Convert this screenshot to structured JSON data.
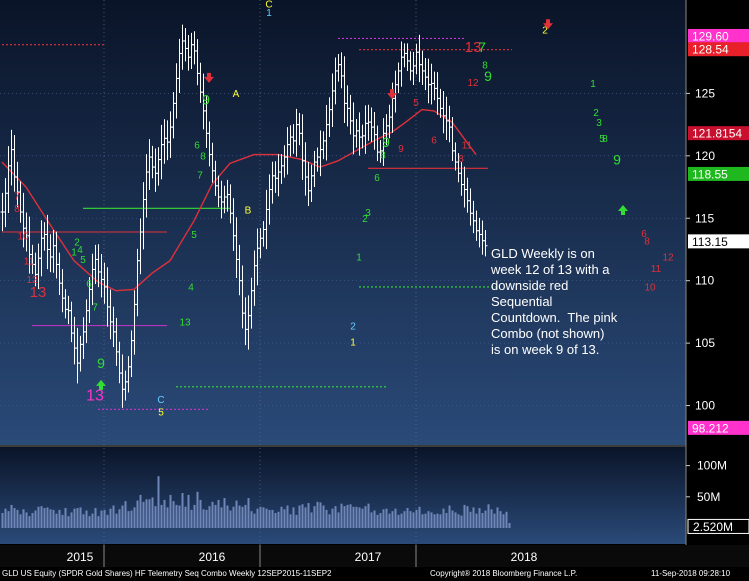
{
  "chart_data": {
    "type": "candlestick-bar",
    "security": "GLD US Equity (SPDR Gold Shares) HF Telemetry Seq Combo  Weekly 12SEP2015-11SEP2",
    "copyright": "Copyright® 2018 Bloomberg Finance L.P.",
    "timestamp": "11-Sep-2018 09:28:10",
    "annotation": "GLD Weekly is on\nweek 12 of 13 with a\ndownside red\nSequential\nCountdown.  The pink\nCombo (not shown)\nis on week 9 of 13.",
    "price_axis": {
      "min": 97,
      "max": 132,
      "ticks": [
        100,
        105,
        110,
        115,
        120,
        125
      ]
    },
    "volume_axis": {
      "min": 0,
      "max": 125,
      "ticks_label": [
        "100M",
        "50M"
      ],
      "ticks": [
        100,
        50
      ]
    },
    "x_labels": [
      {
        "label": "2015",
        "week": 6
      },
      {
        "label": "2016",
        "week": 50
      },
      {
        "label": "2017",
        "week": 102
      },
      {
        "label": "2018",
        "week": 154
      }
    ],
    "year_boundaries": [
      34,
      86,
      138
    ],
    "price_tags": [
      {
        "text": "129.60",
        "value": 129.6,
        "bg": "#ff33cc",
        "fg": "#ffffff"
      },
      {
        "text": "128.54",
        "value": 128.54,
        "bg": "#e8202a",
        "fg": "#ffffff"
      },
      {
        "text": "121.8154",
        "value": 121.8154,
        "bg": "#c8102e",
        "fg": "#ffffff"
      },
      {
        "text": "118.55",
        "value": 118.55,
        "bg": "#1fb81f",
        "fg": "#ffffff"
      },
      {
        "text": "113.15",
        "value": 113.15,
        "bg": "#ffffff",
        "fg": "#000000"
      },
      {
        "text": "98.212",
        "value": 98.212,
        "bg": "#ff33cc",
        "fg": "#ffffff"
      }
    ],
    "volume_tag": {
      "text": "2.520M",
      "value": 2.52
    },
    "colors": {
      "bars": "#ffffff",
      "ma": "#e0303a",
      "volume": "#6f86b8",
      "bg_top": "#0a1428",
      "bg_bottom": "#2a4a78"
    },
    "closes": [
      115.5,
      117,
      119.2,
      120.5,
      118.3,
      117.1,
      115.5,
      114.2,
      113.6,
      112.1,
      111.3,
      110.5,
      111.8,
      113.4,
      113.7,
      112.5,
      111.9,
      112.8,
      111.3,
      109.8,
      108.6,
      107.7,
      107.6,
      105.8,
      104.6,
      103.4,
      104.9,
      105.9,
      107.6,
      109.3,
      110.9,
      111.7,
      110.7,
      110.1,
      109.5,
      107.9,
      106.7,
      105.9,
      104.3,
      102.6,
      101.3,
      101.9,
      103.1,
      105.2,
      108.1,
      111.6,
      113.9,
      116.5,
      118.7,
      119.9,
      119.1,
      118.6,
      119.7,
      120.9,
      121.4,
      121.1,
      122.3,
      124.2,
      126.2,
      128.2,
      129.2,
      128.6,
      127.9,
      128.9,
      128.4,
      126.6,
      125.1,
      123.6,
      121.8,
      120.1,
      118.8,
      117.6,
      116.7,
      116.3,
      116.7,
      116.9,
      115.4,
      113.6,
      111.7,
      110,
      107.4,
      106.1,
      107.2,
      109.2,
      111.2,
      112.6,
      113.4,
      114.1,
      115.7,
      117.3,
      118.4,
      118.2,
      118.7,
      119.2,
      119.9,
      120.9,
      121.5,
      121.2,
      122.5,
      121.8,
      119.6,
      118.3,
      117.2,
      118.4,
      119.5,
      119.9,
      120.5,
      121.2,
      122.5,
      123.7,
      125.2,
      126.8,
      127.3,
      126.4,
      124.2,
      123.8,
      122.8,
      121.6,
      122,
      121.5,
      121.6,
      122.6,
      122.7,
      122.3,
      121.7,
      120.3,
      120.4,
      121.8,
      122.4,
      123.1,
      124.6,
      125.7,
      126.8,
      127.9,
      128.2,
      127.6,
      126.8,
      127.2,
      128.3,
      127.3,
      126.8,
      126.3,
      125.7,
      125.8,
      125.4,
      124.6,
      123.8,
      123.2,
      122.8,
      122.3,
      120.4,
      119.5,
      118.6,
      117.7,
      117.3,
      116.4,
      115.4,
      114.8,
      114,
      113.7,
      113.2,
      112.8
    ],
    "ranges": [
      3.4,
      2.7,
      3.5,
      3.5,
      2.6,
      2.7,
      1.9,
      3.4,
      2.8,
      3.4,
      1.7,
      2.1,
      2.6,
      3.2,
      2.2,
      3.5,
      2.7,
      2.8,
      2.5,
      2.1,
      2.5,
      1.6,
      2.4,
      1.6,
      2.9,
      3.6,
      1.5,
      2.6,
      2,
      2.2,
      2.8,
      2.6,
      2.7,
      3.2,
      3,
      3.5,
      3.1,
      2.7,
      2.5,
      1.8,
      3.3,
      2,
      1.9,
      1.8,
      2.5,
      2.1,
      2.4,
      3.1,
      3.2,
      3.2,
      2,
      3.3,
      2.2,
      3.5,
      3.4,
      3.2,
      2.8,
      2,
      2.7,
      2.6,
      2.9,
      2.3,
      2.4,
      2.1,
      2.4,
      2.1,
      1.9,
      3.3,
      2.6,
      2.1,
      2.1,
      1.8,
      1.8,
      2.9,
      2,
      2.6,
      1.8,
      2.7,
      3.3,
      2.6,
      2.7,
      2.8,
      3.6,
      2.3,
      2.7,
      3.5,
      1.8,
      1.5,
      3.5,
      2.7,
      2.5,
      2.6,
      3.2,
      2.1,
      2.1,
      3.1,
      2.1,
      2.3,
      2.8,
      2.1,
      3.4,
      3.3,
      2.7,
      2,
      2,
      1.7,
      3.4,
      1.7,
      3.5,
      2.2,
      3.1,
      2.4,
      1.9,
      2.2,
      3.5,
      3.2,
      2.4,
      3.3,
      2.1,
      3.3,
      2,
      3.2,
      3.1,
      2.6,
      2.7,
      1.6,
      1.9,
      2.7,
      2.1,
      2.2,
      2.8,
      2.5,
      1.5,
      2.8,
      1.8,
      1.8,
      1.7,
      2.5,
      1.5,
      3.1,
      2.5,
      2.3,
      3.3,
      3.5,
      2.1,
      2.9,
      1.7,
      3.1,
      3.4,
      2.7,
      1.8,
      1.5,
      1.6,
      2,
      3.2,
      2.1,
      2.2,
      2.2,
      1.8,
      2.3,
      2.5,
      1.9,
      2.6,
      2
    ],
    "volumes": [
      24,
      31,
      27,
      37,
      32,
      29,
      22,
      30,
      25,
      19,
      24,
      28,
      34,
      35,
      32,
      33,
      30,
      29,
      23,
      29,
      21,
      32,
      19,
      25,
      31,
      32,
      33,
      22,
      28,
      19,
      23,
      32,
      19,
      28,
      29,
      21,
      31,
      36,
      23,
      30,
      36,
      43,
      27,
      28,
      33,
      44,
      53,
      42,
      46,
      46,
      49,
      35,
      83,
      37,
      45,
      33,
      53,
      43,
      37,
      36,
      56,
      34,
      53,
      29,
      37,
      58,
      45,
      30,
      29,
      35,
      42,
      37,
      45,
      33,
      48,
      36,
      28,
      34,
      44,
      36,
      34,
      37,
      48,
      27,
      23,
      31,
      34,
      33,
      31,
      29,
      29,
      24,
      26,
      34,
      30,
      36,
      22,
      33,
      21,
      36,
      38,
      33,
      40,
      25,
      35,
      42,
      41,
      36,
      29,
      22,
      31,
      35,
      25,
      39,
      35,
      37,
      38,
      34,
      34,
      33,
      31,
      35,
      39,
      25,
      28,
      21,
      24,
      30,
      31,
      23,
      27,
      31,
      21,
      23,
      27,
      32,
      27,
      25,
      29,
      34,
      22,
      23,
      27,
      25,
      22,
      23,
      22,
      31,
      24,
      36,
      28,
      25,
      22,
      20,
      37,
      35,
      26,
      33,
      23,
      32,
      24,
      28,
      38,
      30,
      23,
      33,
      27,
      22,
      26,
      8
    ],
    "ma_line": [
      {
        "w": 0,
        "v": 119.5
      },
      {
        "w": 8,
        "v": 117.5
      },
      {
        "w": 16,
        "v": 114.5
      },
      {
        "w": 24,
        "v": 111.6
      },
      {
        "w": 32,
        "v": 109.9
      },
      {
        "w": 38,
        "v": 109.2
      },
      {
        "w": 44,
        "v": 109.3
      },
      {
        "w": 50,
        "v": 110.6
      },
      {
        "w": 56,
        "v": 111.6
      },
      {
        "w": 64,
        "v": 114.8
      },
      {
        "w": 70,
        "v": 117.7
      },
      {
        "w": 76,
        "v": 119.4
      },
      {
        "w": 84,
        "v": 120.1
      },
      {
        "w": 92,
        "v": 120.1
      },
      {
        "w": 100,
        "v": 119.7
      },
      {
        "w": 106,
        "v": 119.1
      },
      {
        "w": 112,
        "v": 119.6
      },
      {
        "w": 118,
        "v": 120.4
      },
      {
        "w": 124,
        "v": 121.2
      },
      {
        "w": 130,
        "v": 121.9
      },
      {
        "w": 134,
        "v": 122.6
      },
      {
        "w": 140,
        "v": 123.7
      },
      {
        "w": 144,
        "v": 123.6
      },
      {
        "w": 150,
        "v": 122.7
      },
      {
        "w": 158,
        "v": 120.1
      }
    ],
    "h_levels": [
      {
        "w0": 0,
        "w1": 34,
        "v": 128.9,
        "color": "#e0303a",
        "dash": "2,2"
      },
      {
        "w0": 0,
        "w1": 55,
        "v": 113.9,
        "color": "#e0303a",
        "dash": ""
      },
      {
        "w0": 27,
        "w1": 76,
        "v": 115.8,
        "color": "#33dd33",
        "dash": ""
      },
      {
        "w0": 10,
        "w1": 55,
        "v": 106.4,
        "color": "#cc33cc",
        "dash": ""
      },
      {
        "w0": 112,
        "w1": 154,
        "v": 129.4,
        "color": "#cc33cc",
        "dash": "2,2"
      },
      {
        "w0": 119,
        "w1": 170,
        "v": 128.5,
        "color": "#e0303a",
        "dash": "2,2"
      },
      {
        "w0": 122,
        "w1": 162,
        "v": 119.0,
        "color": "#e0303a",
        "dash": ""
      },
      {
        "w0": 119,
        "w1": 165,
        "v": 109.5,
        "color": "#33dd33",
        "dash": "2,2"
      },
      {
        "w0": 58,
        "w1": 128,
        "v": 101.5,
        "color": "#33dd33",
        "dash": "2,2"
      },
      {
        "w0": 32,
        "w1": 69,
        "v": 99.7,
        "color": "#cc33cc",
        "dash": "2,2"
      }
    ],
    "counts": [
      {
        "t": "7",
        "w": 5,
        "v": 116.5,
        "c": "#e0303a",
        "s": 10
      },
      {
        "t": "8",
        "w": 5,
        "v": 115.5,
        "c": "#e0303a",
        "s": 10
      },
      {
        "t": "10",
        "w": 7,
        "v": 113.3,
        "c": "#e0303a",
        "s": 10
      },
      {
        "t": "11",
        "w": 9,
        "v": 111.3,
        "c": "#e0303a",
        "s": 10
      },
      {
        "t": "12",
        "w": 10,
        "v": 109.8,
        "c": "#e0303a",
        "s": 10
      },
      {
        "t": "13",
        "w": 12,
        "v": 108.7,
        "c": "#e0303a",
        "s": 15
      },
      {
        "t": "1",
        "w": 24,
        "v": 112.0,
        "c": "#33dd33",
        "s": 10
      },
      {
        "t": "2",
        "w": 25,
        "v": 112.8,
        "c": "#33dd33",
        "s": 10
      },
      {
        "t": "4",
        "w": 26,
        "v": 112.2,
        "c": "#33dd33",
        "s": 10
      },
      {
        "t": "5",
        "w": 27,
        "v": 111.4,
        "c": "#33dd33",
        "s": 10
      },
      {
        "t": "6",
        "w": 29,
        "v": 109.5,
        "c": "#33dd33",
        "s": 10
      },
      {
        "t": "7",
        "w": 31,
        "v": 107.6,
        "c": "#33dd33",
        "s": 10
      },
      {
        "t": "9",
        "w": 33,
        "v": 103.0,
        "c": "#33dd33",
        "s": 14
      },
      {
        "t": "13",
        "w": 31,
        "v": 100.4,
        "c": "#ff33cc",
        "s": 16
      },
      {
        "t": "C",
        "w": 53,
        "v": 100.2,
        "c": "#66ccff",
        "s": 10
      },
      {
        "t": "5",
        "w": 53,
        "v": 99.2,
        "c": "#ffff33",
        "s": 10
      },
      {
        "t": "13",
        "w": 61,
        "v": 106.4,
        "c": "#33dd33",
        "s": 10
      },
      {
        "t": "4",
        "w": 63,
        "v": 109.2,
        "c": "#33dd33",
        "s": 10
      },
      {
        "t": "5",
        "w": 64,
        "v": 113.4,
        "c": "#33dd33",
        "s": 10
      },
      {
        "t": "6",
        "w": 65,
        "v": 120.6,
        "c": "#33dd33",
        "s": 10
      },
      {
        "t": "7",
        "w": 66,
        "v": 118.2,
        "c": "#33dd33",
        "s": 10
      },
      {
        "t": "8",
        "w": 67,
        "v": 119.7,
        "c": "#33dd33",
        "s": 10
      },
      {
        "t": "9",
        "w": 68,
        "v": 124.1,
        "c": "#33dd33",
        "s": 14
      },
      {
        "t": "A",
        "w": 78,
        "v": 124.7,
        "c": "#ffff33",
        "s": 10
      },
      {
        "t": "B",
        "w": 82,
        "v": 115.4,
        "c": "#ffff33",
        "s": 10
      },
      {
        "t": "C",
        "w": 89,
        "v": 131.9,
        "c": "#ffff33",
        "s": 10
      },
      {
        "t": "1",
        "w": 89,
        "v": 131.2,
        "c": "#66ccff",
        "s": 10
      },
      {
        "t": "2",
        "w": 117,
        "v": 106.1,
        "c": "#66ccff",
        "s": 10
      },
      {
        "t": "1",
        "w": 117,
        "v": 104.8,
        "c": "#ffff33",
        "s": 10
      },
      {
        "t": "1",
        "w": 119,
        "v": 111.6,
        "c": "#33dd33",
        "s": 10
      },
      {
        "t": "2",
        "w": 121,
        "v": 114.7,
        "c": "#33dd33",
        "s": 10
      },
      {
        "t": "3",
        "w": 122,
        "v": 115.2,
        "c": "#33dd33",
        "s": 10
      },
      {
        "t": "6",
        "w": 125,
        "v": 118.0,
        "c": "#33dd33",
        "s": 10
      },
      {
        "t": "8",
        "w": 127,
        "v": 119.8,
        "c": "#33dd33",
        "s": 10
      },
      {
        "t": "9",
        "w": 128,
        "v": 120.7,
        "c": "#33dd33",
        "s": 14
      },
      {
        "t": "9",
        "w": 133,
        "v": 120.3,
        "c": "#e0303a",
        "s": 10
      },
      {
        "t": "5",
        "w": 138,
        "v": 124.0,
        "c": "#e0303a",
        "s": 10
      },
      {
        "t": "6",
        "w": 144,
        "v": 121.0,
        "c": "#e0303a",
        "s": 10
      },
      {
        "t": "8",
        "w": 153,
        "v": 119.5,
        "c": "#e0303a",
        "s": 10
      },
      {
        "t": "11",
        "w": 155,
        "v": 120.6,
        "c": "#e0303a",
        "s": 10
      },
      {
        "t": "12",
        "w": 157,
        "v": 125.6,
        "c": "#e0303a",
        "s": 10
      },
      {
        "t": "13",
        "w": 157,
        "v": 128.3,
        "c": "#e0303a",
        "s": 15
      },
      {
        "t": "7",
        "w": 160,
        "v": 128.3,
        "c": "#33dd33",
        "s": 14
      },
      {
        "t": "8",
        "w": 161,
        "v": 127.0,
        "c": "#33dd33",
        "s": 10
      },
      {
        "t": "9",
        "w": 162,
        "v": 126.0,
        "c": "#33dd33",
        "s": 14
      },
      {
        "t": "2",
        "w": 181,
        "v": 129.8,
        "c": "#ffff33",
        "s": 10
      },
      {
        "t": "1",
        "w": 197,
        "v": 125.5,
        "c": "#33dd33",
        "s": 10
      },
      {
        "t": "2",
        "w": 198,
        "v": 123.2,
        "c": "#33dd33",
        "s": 10
      },
      {
        "t": "3",
        "w": 199,
        "v": 122.4,
        "c": "#33dd33",
        "s": 10
      },
      {
        "t": "5",
        "w": 200,
        "v": 121.1,
        "c": "#33dd33",
        "s": 10
      },
      {
        "t": "8",
        "w": 201,
        "v": 121.1,
        "c": "#33dd33",
        "s": 10
      },
      {
        "t": "9",
        "w": 205,
        "v": 119.3,
        "c": "#33dd33",
        "s": 14
      },
      {
        "t": "6",
        "w": 214,
        "v": 113.5,
        "c": "#e0303a",
        "s": 10
      },
      {
        "t": "8",
        "w": 215,
        "v": 112.9,
        "c": "#e0303a",
        "s": 10
      },
      {
        "t": "11",
        "w": 218,
        "v": 110.7,
        "c": "#e0303a",
        "s": 10
      },
      {
        "t": "10",
        "w": 216,
        "v": 109.2,
        "c": "#e0303a",
        "s": 10
      },
      {
        "t": "12",
        "w": 222,
        "v": 111.6,
        "c": "#e0303a",
        "s": 10
      }
    ],
    "arrows": [
      {
        "w": 69,
        "v": 126.0,
        "dir": "down",
        "c": "#e0303a"
      },
      {
        "w": 130,
        "v": 124.7,
        "dir": "down",
        "c": "#e0303a"
      },
      {
        "w": 182,
        "v": 130.3,
        "dir": "down",
        "c": "#e0303a"
      },
      {
        "w": 207,
        "v": 115.9,
        "dir": "up",
        "c": "#33dd33"
      },
      {
        "w": 33,
        "v": 101.9,
        "dir": "up",
        "c": "#33dd33"
      }
    ]
  }
}
